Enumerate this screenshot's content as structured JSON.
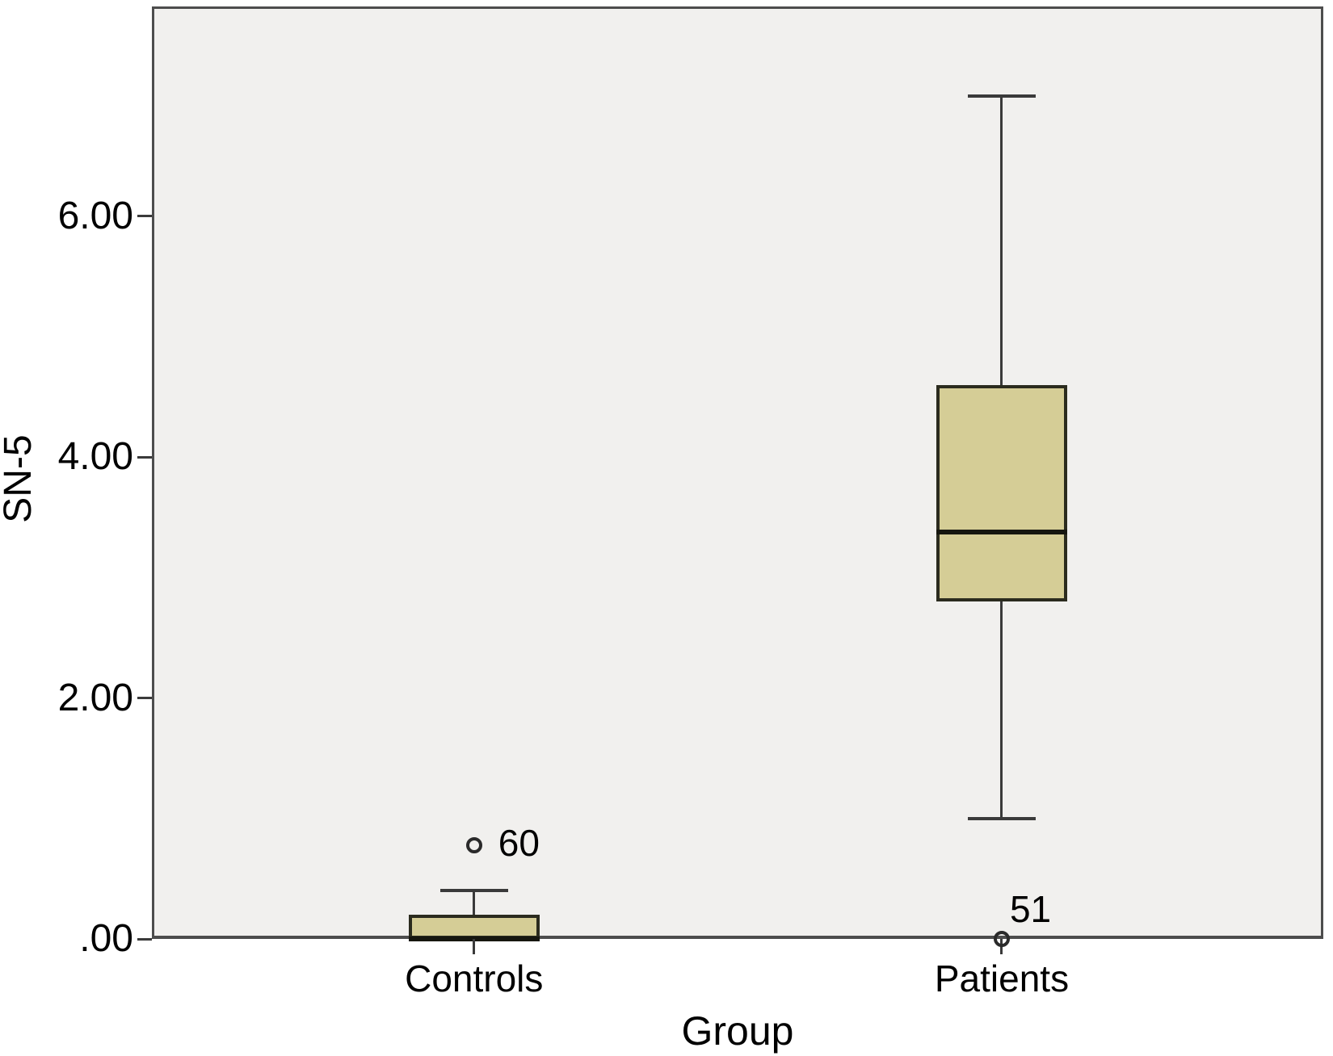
{
  "chart_data": {
    "type": "boxplot",
    "title": "",
    "xlabel": "Group",
    "ylabel": "SN-5",
    "ylim": [
      0,
      7.74
    ],
    "grid": false,
    "legend": null,
    "yticks": [
      {
        "label": ".00",
        "value": 0
      },
      {
        "label": "2.00",
        "value": 2
      },
      {
        "label": "4.00",
        "value": 4
      },
      {
        "label": "6.00",
        "value": 6
      }
    ],
    "groups": [
      {
        "category": "Controls",
        "whisker_low": 0.0,
        "q1": 0.0,
        "median": 0.0,
        "q3": 0.2,
        "whisker_high": 0.4,
        "outliers": [
          {
            "value": 0.78,
            "label": "60"
          }
        ]
      },
      {
        "category": "Patients",
        "whisker_low": 1.0,
        "q1": 2.8,
        "median": 3.38,
        "q3": 4.6,
        "whisker_high": 7.0,
        "outliers": [
          {
            "value": 0.0,
            "label": "51"
          }
        ]
      }
    ],
    "colors": {
      "box_fill": "#d5cd96",
      "box_border": "#2b2b1e",
      "median": "#16160f",
      "whisker": "#3a3a3a",
      "plot_background": "#f1f0ee",
      "frame": "#4d4d4d",
      "text": "#000000"
    }
  }
}
